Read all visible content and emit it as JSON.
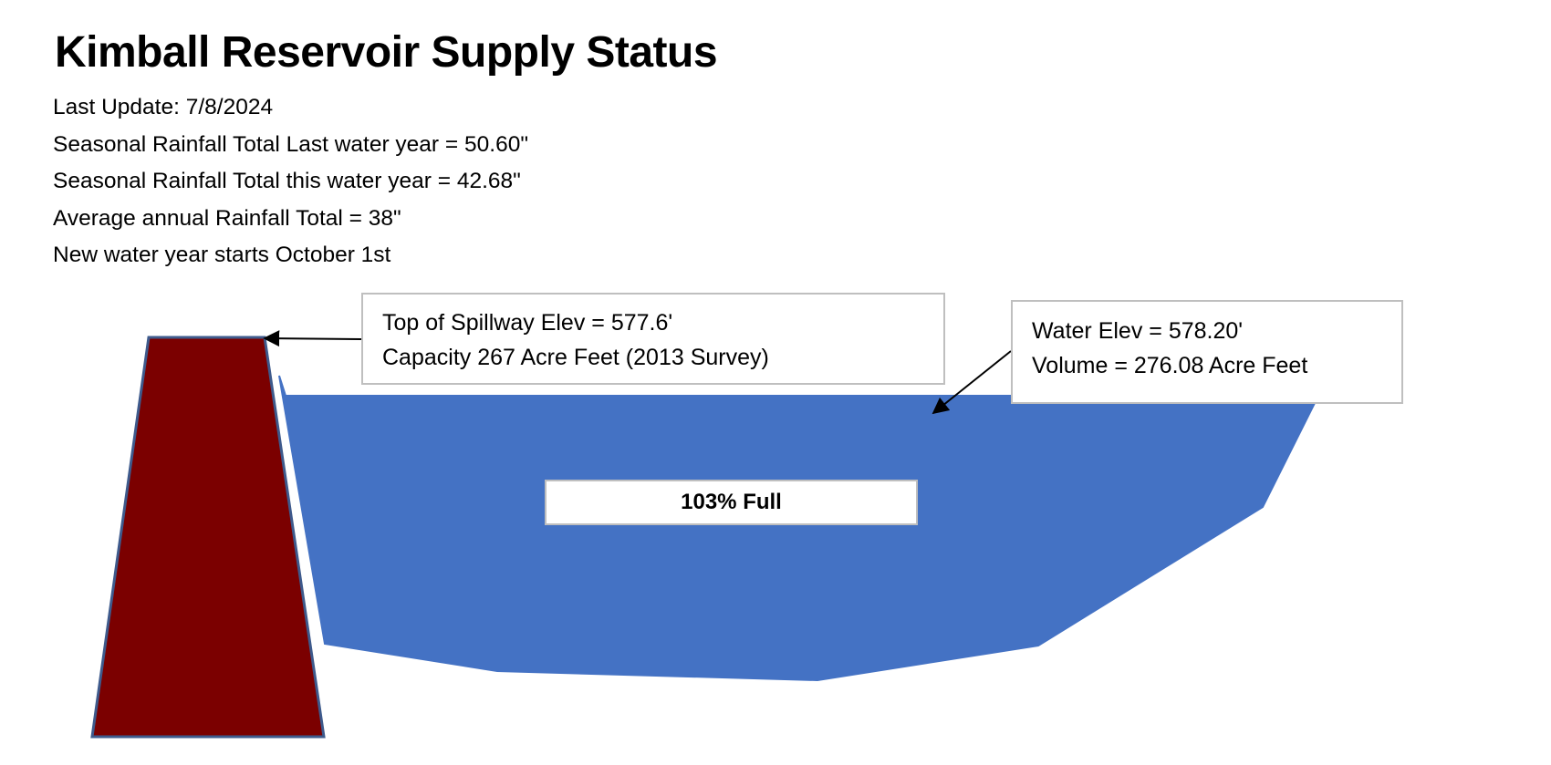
{
  "title": "Kimball Reservoir Supply Status",
  "info_lines": [
    "Last Update: 7/8/2024",
    "Seasonal Rainfall Total Last water year = 50.60\"",
    "Seasonal Rainfall Total this water year = 42.68\"",
    "Average annual Rainfall Total = 38\"",
    "New water year starts October 1st"
  ],
  "spillway_callout": {
    "line1": "Top of Spillway Elev = 577.6'",
    "line2": "Capacity 267 Acre Feet (2013 Survey)"
  },
  "water_callout": {
    "line1": "Water Elev = 578.20'",
    "line2": "Volume = 276.08 Acre Feet"
  },
  "full_label": "103% Full",
  "colors": {
    "dam_fill": "#7b0000",
    "dam_stroke": "#3e5a8c",
    "water_fill": "#4472c4",
    "callout_border": "#bfbfbf"
  }
}
